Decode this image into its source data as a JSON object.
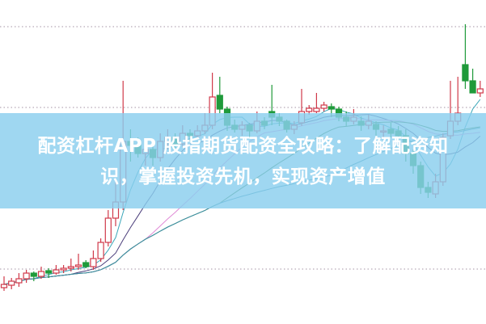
{
  "headline": {
    "line1": "配资杠杆APP 股指期货配资全攻略：了解配资知",
    "line2": "识，掌握投资先机，实现资产增值"
  },
  "chart_data": {
    "type": "candlestick",
    "title": "",
    "xlabel": "",
    "ylabel": "",
    "grid": "dotted horizontal",
    "ylim": [
      0,
      400
    ],
    "fields": [
      "open",
      "high",
      "low",
      "close"
    ],
    "candles": [
      [
        44,
        58,
        40,
        48
      ],
      [
        47,
        56,
        42,
        52
      ],
      [
        50,
        62,
        45,
        55
      ],
      [
        55,
        66,
        50,
        62
      ],
      [
        62,
        64,
        52,
        58
      ],
      [
        58,
        70,
        55,
        64
      ],
      [
        65,
        68,
        56,
        62
      ],
      [
        62,
        72,
        60,
        66
      ],
      [
        66,
        72,
        62,
        68
      ],
      [
        68,
        80,
        64,
        70
      ],
      [
        70,
        86,
        66,
        72
      ],
      [
        75,
        78,
        68,
        70
      ],
      [
        70,
        90,
        66,
        80
      ],
      [
        80,
        105,
        76,
        100
      ],
      [
        100,
        140,
        95,
        130
      ],
      [
        130,
        175,
        120,
        150
      ],
      [
        150,
        300,
        140,
        225
      ],
      [
        225,
        240,
        200,
        220
      ],
      [
        220,
        230,
        205,
        210
      ],
      [
        210,
        225,
        195,
        215
      ],
      [
        215,
        220,
        195,
        205
      ],
      [
        205,
        235,
        200,
        225
      ],
      [
        225,
        240,
        215,
        230
      ],
      [
        230,
        235,
        215,
        222
      ],
      [
        222,
        245,
        218,
        235
      ],
      [
        235,
        240,
        225,
        232
      ],
      [
        232,
        245,
        228,
        238
      ],
      [
        238,
        260,
        234,
        245
      ],
      [
        245,
        310,
        240,
        280
      ],
      [
        282,
        305,
        260,
        265
      ],
      [
        265,
        268,
        238,
        245
      ],
      [
        245,
        252,
        236,
        240
      ],
      [
        240,
        250,
        232,
        245
      ],
      [
        245,
        248,
        230,
        238
      ],
      [
        238,
        262,
        235,
        250
      ],
      [
        250,
        255,
        240,
        245
      ],
      [
        262,
        295,
        245,
        255
      ],
      [
        255,
        260,
        244,
        250
      ],
      [
        250,
        252,
        236,
        240
      ],
      [
        240,
        250,
        234,
        245
      ],
      [
        248,
        290,
        244,
        262
      ],
      [
        262,
        270,
        258,
        266
      ],
      [
        262,
        285,
        260,
        266
      ],
      [
        266,
        274,
        262,
        270
      ],
      [
        268,
        272,
        255,
        265
      ],
      [
        265,
        268,
        250,
        255
      ],
      [
        255,
        262,
        244,
        250
      ],
      [
        250,
        265,
        246,
        255
      ],
      [
        250,
        256,
        238,
        245
      ],
      [
        245,
        258,
        240,
        250
      ],
      [
        246,
        250,
        232,
        240
      ],
      [
        238,
        245,
        230,
        238
      ],
      [
        240,
        248,
        230,
        235
      ],
      [
        238,
        244,
        225,
        232
      ],
      [
        232,
        240,
        200,
        210
      ],
      [
        210,
        215,
        185,
        195
      ],
      [
        195,
        200,
        160,
        168
      ],
      [
        168,
        175,
        155,
        162
      ],
      [
        160,
        185,
        155,
        175
      ],
      [
        175,
        235,
        170,
        230
      ],
      [
        232,
        300,
        228,
        250
      ],
      [
        250,
        305,
        245,
        260
      ],
      [
        320,
        370,
        290,
        300
      ],
      [
        300,
        315,
        285,
        285
      ],
      [
        285,
        300,
        280,
        290
      ]
    ],
    "gridlines": [
      367,
      267,
      67
    ],
    "moving_averages": [
      {
        "period": 5,
        "color": "#3aa6b9"
      },
      {
        "period": 10,
        "color": "#4a3d7a"
      },
      {
        "period": 20,
        "color": "#e08ad6"
      },
      {
        "period": 30,
        "color": "#2f7a3a"
      },
      {
        "period": 45,
        "color": "#3b8fa8"
      }
    ],
    "colors": {
      "up": "#d0394a",
      "down": "#1f9a3a",
      "grid": "#b7a9b7"
    }
  }
}
